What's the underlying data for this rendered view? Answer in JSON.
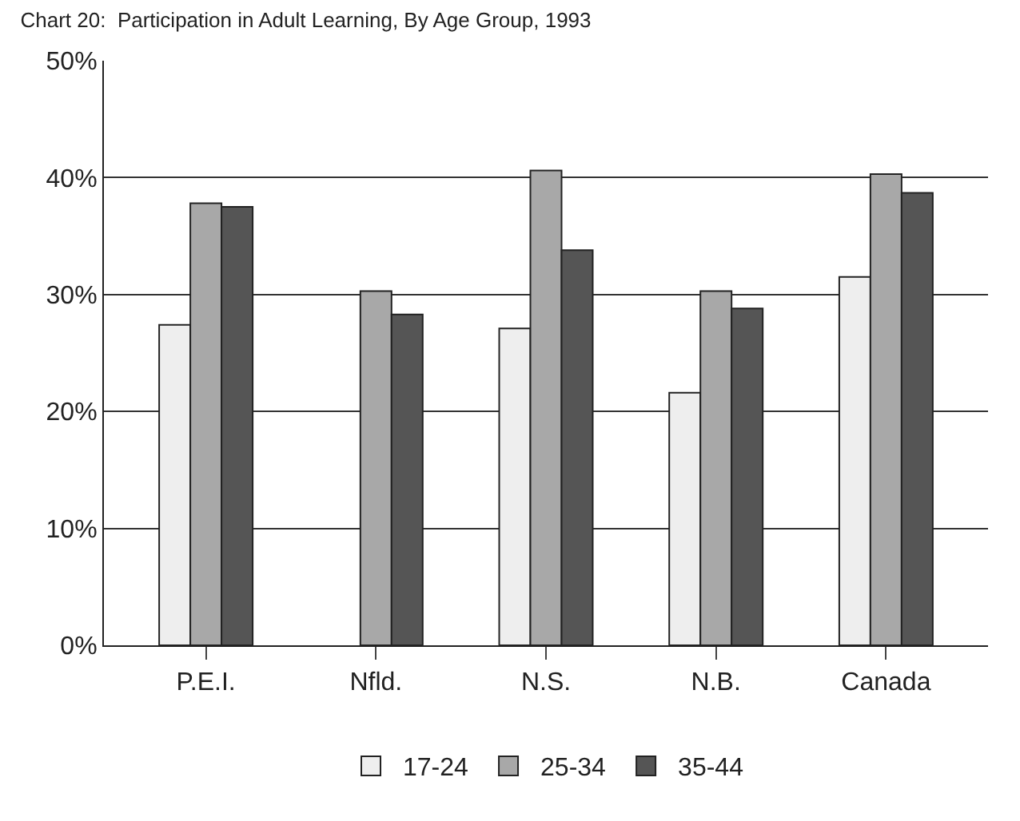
{
  "chart_data": {
    "type": "bar",
    "title": "Chart 20:  Participation in Adult Learning, By Age Group, 1993",
    "categories": [
      "P.E.I.",
      "Nfld.",
      "N.S.",
      "N.B.",
      "Canada"
    ],
    "series": [
      {
        "name": "17-24",
        "color": "#eeeeee",
        "values": [
          27.4,
          null,
          27.1,
          21.6,
          31.5
        ]
      },
      {
        "name": "25-34",
        "color": "#a8a8a8",
        "values": [
          37.8,
          30.3,
          40.6,
          30.3,
          40.3
        ]
      },
      {
        "name": "35-44",
        "color": "#555555",
        "values": [
          37.5,
          28.3,
          33.8,
          28.8,
          38.7
        ]
      }
    ],
    "ylim": [
      0,
      50
    ],
    "yticks": [
      {
        "value": 0,
        "label": "0%"
      },
      {
        "value": 10,
        "label": "10%"
      },
      {
        "value": 20,
        "label": "20%"
      },
      {
        "value": 30,
        "label": "30%"
      },
      {
        "value": 40,
        "label": "40%"
      },
      {
        "value": 50,
        "label": "50%"
      }
    ],
    "grid": "y",
    "legend": "bottom"
  }
}
